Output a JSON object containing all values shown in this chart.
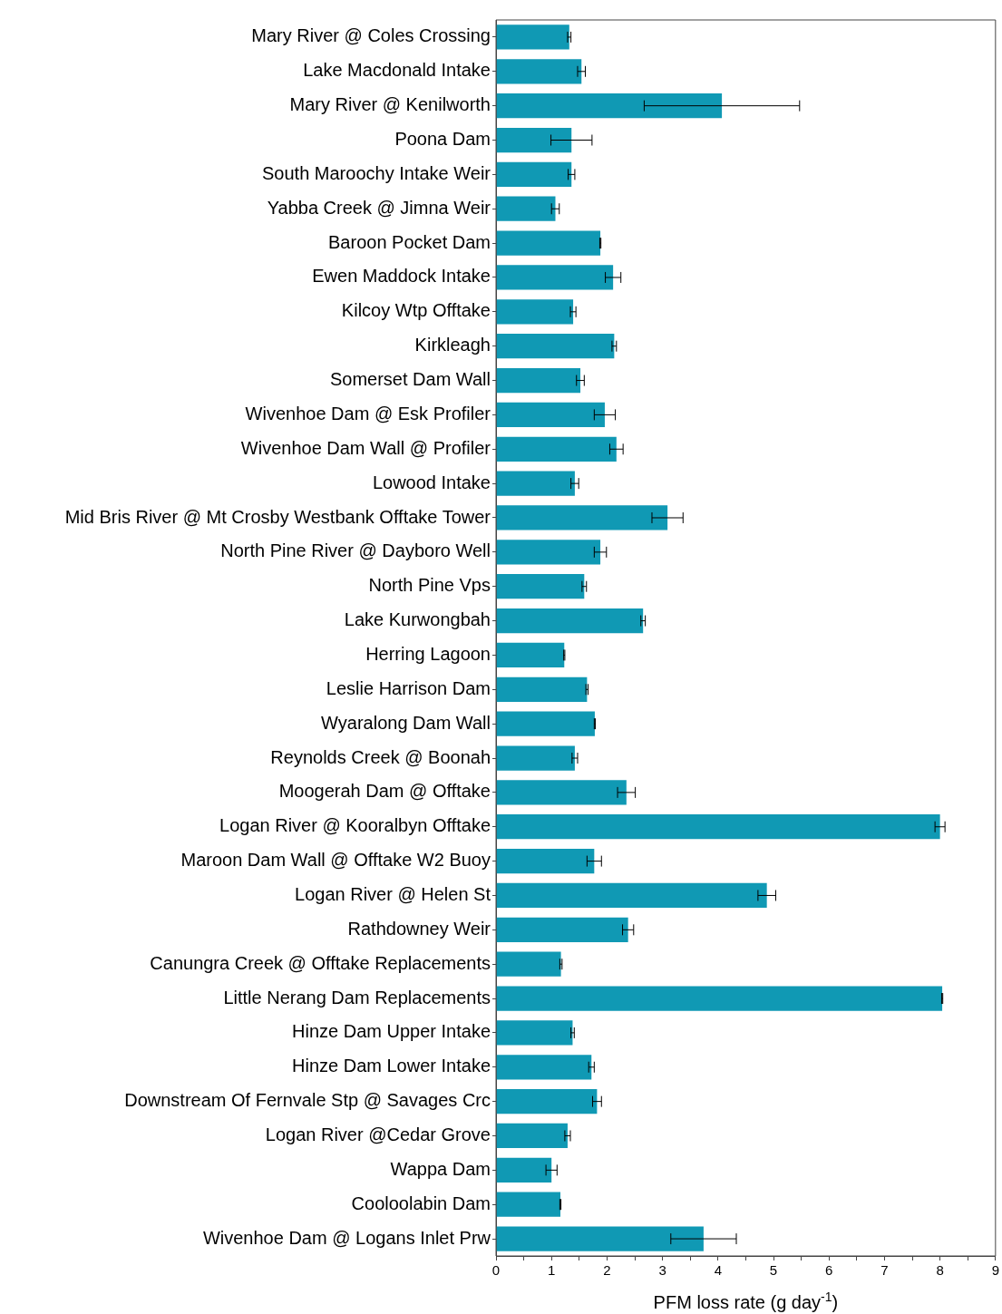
{
  "chart_data": {
    "type": "bar",
    "orientation": "horizontal",
    "xlabel": "PFM loss rate (g day$^{-1}$)",
    "categories": [
      "Mary River @ Coles Crossing",
      "Lake Macdonald Intake",
      "Mary River @ Kenilworth",
      "Poona Dam",
      "South Maroochy Intake Weir",
      "Yabba Creek @ Jimna Weir",
      "Baroon Pocket Dam",
      "Ewen Maddock Intake",
      "Kilcoy Wtp Offtake",
      "Kirkleagh",
      "Somerset Dam Wall",
      "Wivenhoe Dam @ Esk Profiler",
      "Wivenhoe Dam Wall @ Profiler",
      "Lowood Intake",
      "Mid Bris River @ Mt Crosby Westbank Offtake Tower",
      "North Pine River @ Dayboro Well",
      "North Pine Vps",
      "Lake Kurwongbah",
      "Herring Lagoon",
      "Leslie Harrison Dam",
      "Wyaralong Dam Wall",
      "Reynolds Creek @ Boonah",
      "Moogerah Dam @ Offtake",
      "Logan River @ Kooralbyn Offtake",
      "Maroon Dam Wall @ Offtake W2 Buoy",
      "Logan River @ Helen St",
      "Rathdowney Weir",
      "Canungra Creek @ Offtake Replacements",
      "Little Nerang Dam Replacements",
      "Hinze Dam Upper Intake",
      "Hinze Dam Lower Intake",
      "Downstream Of Fernvale Stp @ Savages Crc",
      "Logan River @Cedar Grove",
      "Wappa Dam",
      "Cooloolabin Dam",
      "Wivenhoe Dam @ Logans Inlet Prw"
    ],
    "values": [
      1.32,
      1.54,
      4.07,
      1.36,
      1.36,
      1.07,
      1.88,
      2.11,
      1.39,
      2.13,
      1.52,
      1.96,
      2.17,
      1.42,
      3.09,
      1.88,
      1.59,
      2.65,
      1.23,
      1.64,
      1.78,
      1.42,
      2.35,
      8.0,
      1.77,
      4.88,
      2.38,
      1.17,
      8.04,
      1.38,
      1.72,
      1.82,
      1.29,
      1.0,
      1.16,
      3.74
    ],
    "errors": [
      0.03,
      0.07,
      1.4,
      0.37,
      0.06,
      0.07,
      0.01,
      0.14,
      0.05,
      0.04,
      0.07,
      0.19,
      0.12,
      0.07,
      0.28,
      0.11,
      0.04,
      0.04,
      0.01,
      0.02,
      0.01,
      0.05,
      0.16,
      0.09,
      0.13,
      0.16,
      0.1,
      0.02,
      0.01,
      0.03,
      0.05,
      0.08,
      0.05,
      0.1,
      0.01,
      0.59
    ],
    "color": "#1099b4",
    "xlim": [
      0,
      9
    ],
    "xticks": [
      0,
      {
        "value": 0.5,
        "label": null
      },
      1,
      {
        "value": 1.5,
        "label": null
      },
      2,
      {
        "value": 2.5,
        "label": null
      },
      3,
      {
        "value": 3.5,
        "label": null
      },
      4,
      {
        "value": 4.5,
        "label": null
      },
      5,
      {
        "value": 5.5,
        "label": null
      },
      6,
      {
        "value": 6.5,
        "label": null
      },
      7,
      {
        "value": 7.5,
        "label": null
      },
      8,
      {
        "value": 8.5,
        "label": null
      },
      9
    ],
    "grid": false,
    "legend": false
  }
}
